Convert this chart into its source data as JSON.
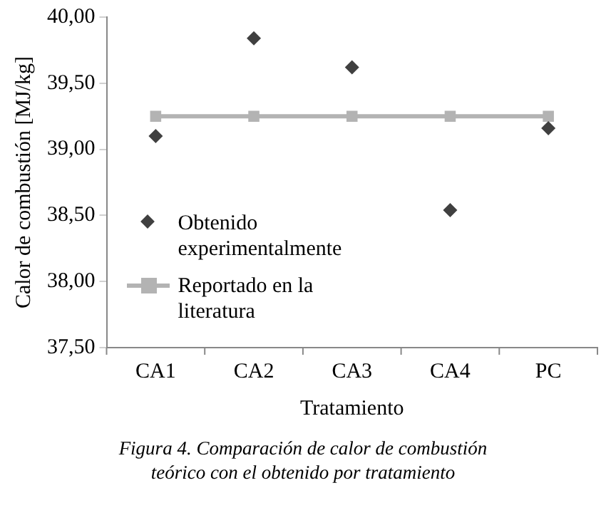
{
  "chart_data": {
    "type": "scatter",
    "xlabel": "Tratamiento",
    "ylabel": "Calor de combustión [MJ/kg]",
    "categories": [
      "CA1",
      "CA2",
      "CA3",
      "CA4",
      "PC"
    ],
    "series": [
      {
        "name": "Obtenido experimentalmente",
        "type": "scatter",
        "color": "#404040",
        "marker": "diamond",
        "values": [
          39.1,
          39.84,
          39.62,
          38.54,
          39.16
        ]
      },
      {
        "name": "Reportado en la literatura",
        "type": "line",
        "color": "#b3b3b3",
        "marker": "square",
        "values": [
          39.25,
          39.25,
          39.25,
          39.25,
          39.25
        ]
      }
    ],
    "ylim": [
      37.5,
      40
    ],
    "yticks": [
      {
        "value": 37.5,
        "label": "37,50"
      },
      {
        "value": 38,
        "label": "38,00"
      },
      {
        "value": 38.5,
        "label": "38,50"
      },
      {
        "value": 39,
        "label": "39,00"
      },
      {
        "value": 39.5,
        "label": "39,50"
      },
      {
        "value": 40,
        "label": "40,00"
      }
    ],
    "grid": false,
    "legend": "bottom left",
    "annotations": [
      "Figura 4. Comparación de calor de combustión teórico con el obtenido por tratamiento"
    ]
  }
}
